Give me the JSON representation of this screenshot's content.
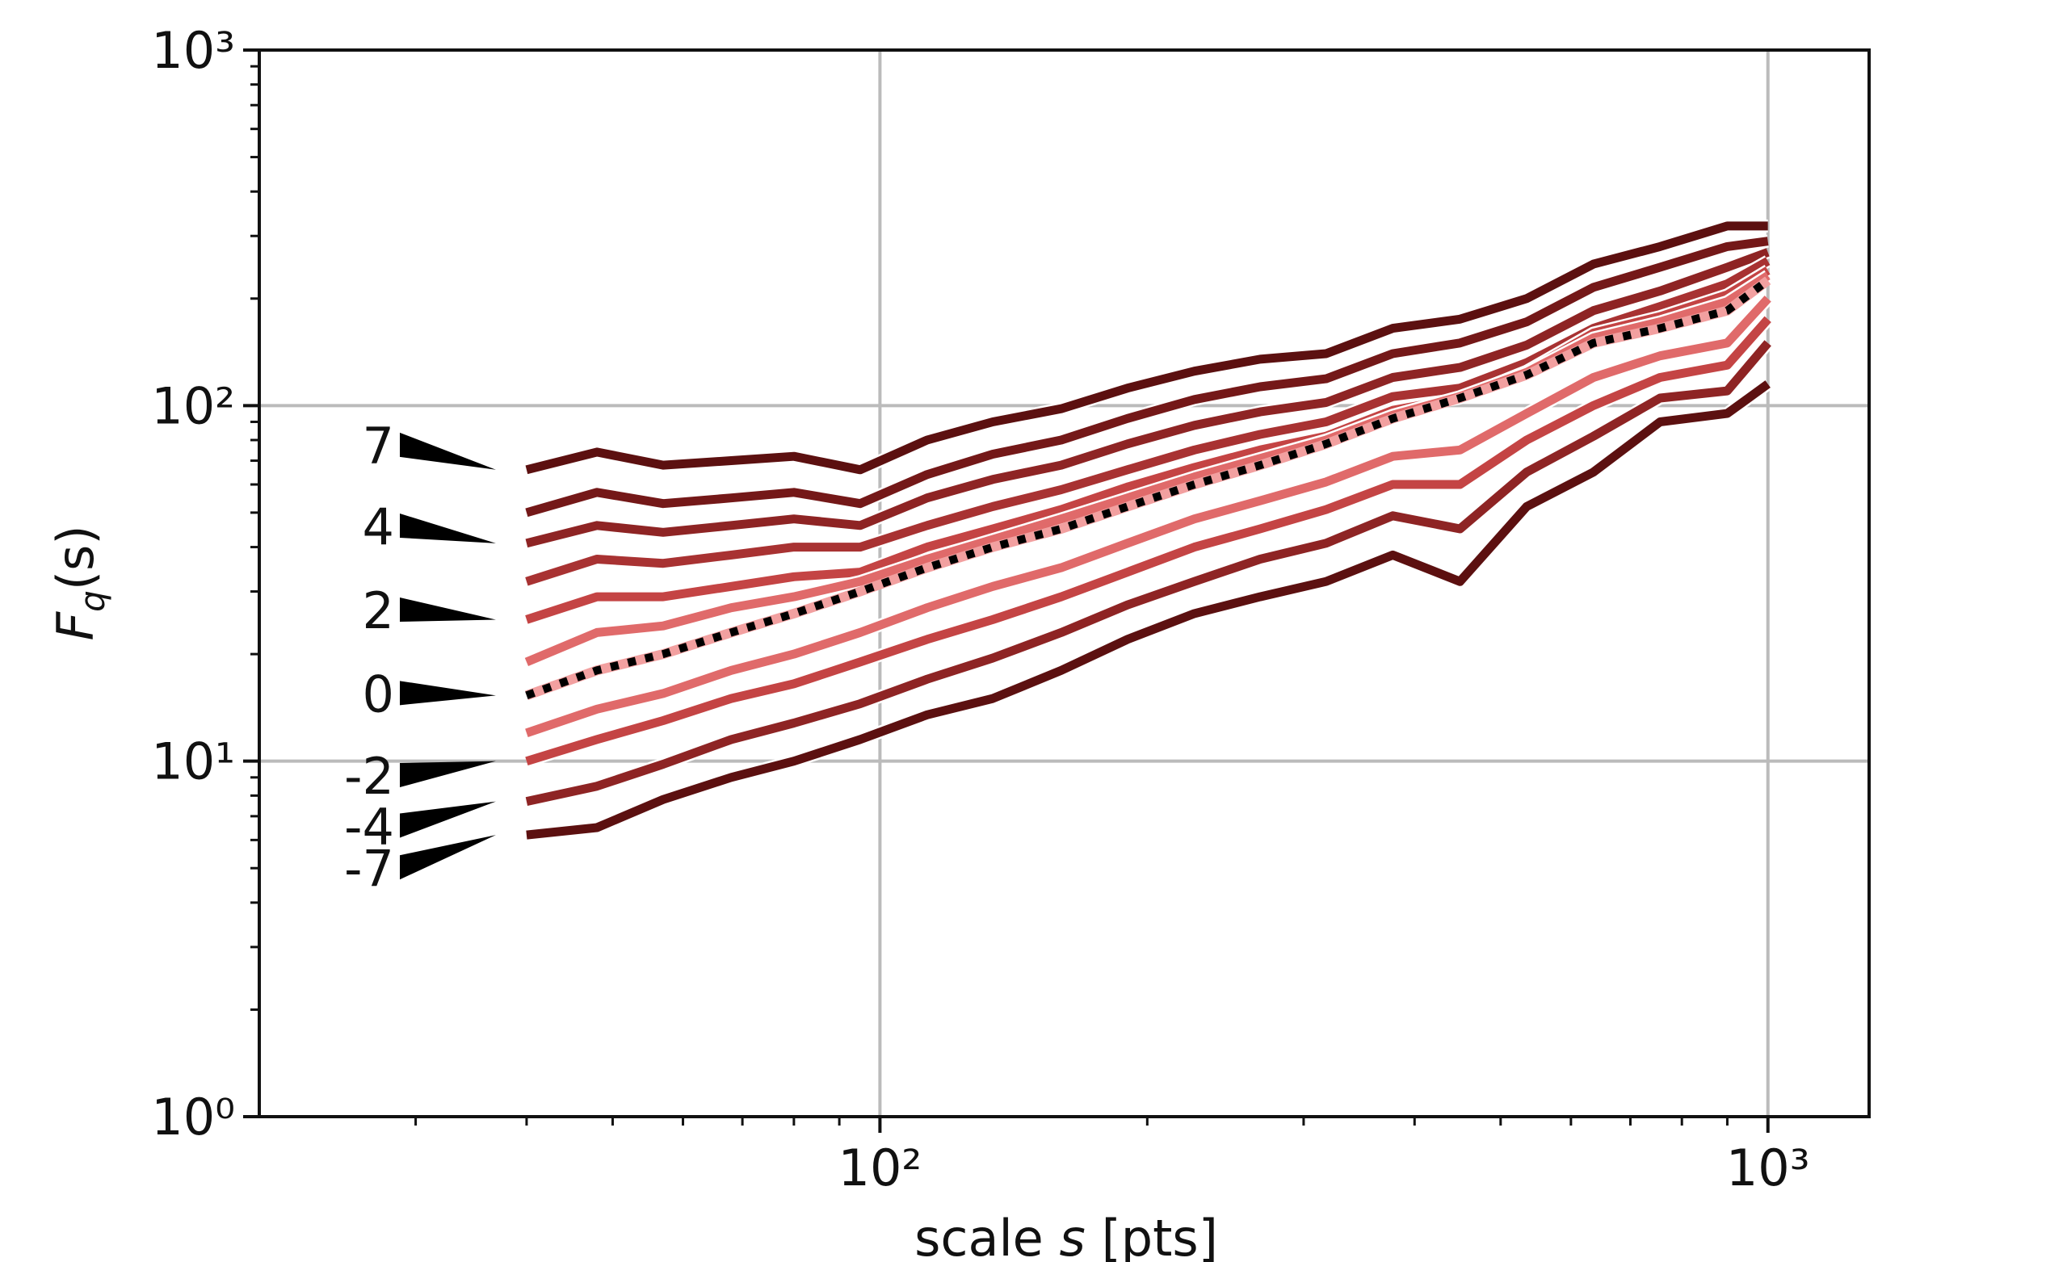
{
  "chart_data": {
    "type": "line",
    "xlabel": [
      "scale ",
      "s",
      " [pts]"
    ],
    "ylabel": [
      "F",
      "q",
      "(s)"
    ],
    "log_x": true,
    "log_y": true,
    "grid": true,
    "xlim": [
      20,
      1300
    ],
    "ylim": [
      1,
      1000
    ],
    "xticks": [
      {
        "value": 100,
        "label": "10²"
      },
      {
        "value": 1000,
        "label": "10³"
      }
    ],
    "yticks": [
      {
        "value": 1,
        "label": "10⁰"
      },
      {
        "value": 10,
        "label": "10¹"
      },
      {
        "value": 100,
        "label": "10²"
      },
      {
        "value": 1000,
        "label": "10³"
      }
    ],
    "x": [
      40,
      48,
      57,
      68,
      80,
      95,
      113,
      134,
      160,
      190,
      226,
      268,
      318,
      378,
      450,
      535,
      636,
      756,
      900,
      1000
    ],
    "series": [
      {
        "name": "7",
        "color": "#5c1010",
        "values": [
          66,
          74,
          68,
          70,
          72,
          66,
          80,
          90,
          98,
          112,
          125,
          135,
          140,
          165,
          175,
          200,
          250,
          280,
          320,
          320
        ]
      },
      {
        "color": "#741818",
        "values": [
          50,
          57,
          53,
          55,
          57,
          53,
          64,
          73,
          80,
          92,
          104,
          113,
          119,
          140,
          150,
          172,
          215,
          245,
          280,
          290
        ]
      },
      {
        "name": "4",
        "color": "#8e2424",
        "values": [
          41,
          46,
          44,
          46,
          48,
          46,
          55,
          62,
          68,
          78,
          88,
          96,
          102,
          120,
          128,
          148,
          185,
          210,
          245,
          270
        ]
      },
      {
        "color": "#a83232",
        "values": [
          32,
          37,
          36,
          38,
          40,
          40,
          46,
          52,
          58,
          66,
          75,
          83,
          90,
          106,
          112,
          132,
          165,
          190,
          220,
          255
        ]
      },
      {
        "name": "2",
        "color": "#c44444",
        "values": [
          25,
          29,
          29,
          31,
          33,
          34,
          40,
          45,
          51,
          59,
          67,
          75,
          82,
          97,
          105,
          125,
          160,
          178,
          205,
          240
        ]
      },
      {
        "color": "#e06a6a",
        "values": [
          19,
          23,
          24,
          27,
          29,
          32,
          37,
          42,
          48,
          55,
          63,
          71,
          80,
          94,
          106,
          124,
          155,
          172,
          196,
          232
        ]
      },
      {
        "name": "0",
        "color": "#000000",
        "style": "dotted",
        "values": [
          15.3,
          18,
          20,
          23,
          26,
          30,
          35,
          40,
          45,
          52,
          60,
          68,
          78,
          92,
          105,
          122,
          150,
          165,
          185,
          225
        ]
      },
      {
        "color": "#e06a6a",
        "values": [
          12,
          14,
          15.5,
          18,
          20,
          23,
          27,
          31,
          35,
          41,
          48,
          54,
          61,
          72,
          75,
          95,
          120,
          138,
          150,
          200
        ]
      },
      {
        "name": "-2",
        "color": "#c44444",
        "values": [
          10,
          11.5,
          13,
          15,
          16.5,
          19,
          22,
          25,
          29,
          34,
          40,
          45,
          51,
          60,
          60,
          80,
          100,
          120,
          130,
          175
        ]
      },
      {
        "name": "-4",
        "color": "#8e2424",
        "values": [
          7.7,
          8.5,
          9.8,
          11.5,
          12.8,
          14.5,
          17,
          19.5,
          23,
          27.5,
          32,
          37,
          41,
          49,
          45,
          65,
          82,
          105,
          110,
          150
        ]
      },
      {
        "name": "-7",
        "color": "#5c1010",
        "values": [
          6.2,
          6.5,
          7.8,
          9,
          10,
          11.5,
          13.5,
          15,
          18,
          22,
          26,
          29,
          32,
          38,
          32,
          52,
          65,
          90,
          95,
          115
        ]
      }
    ]
  }
}
